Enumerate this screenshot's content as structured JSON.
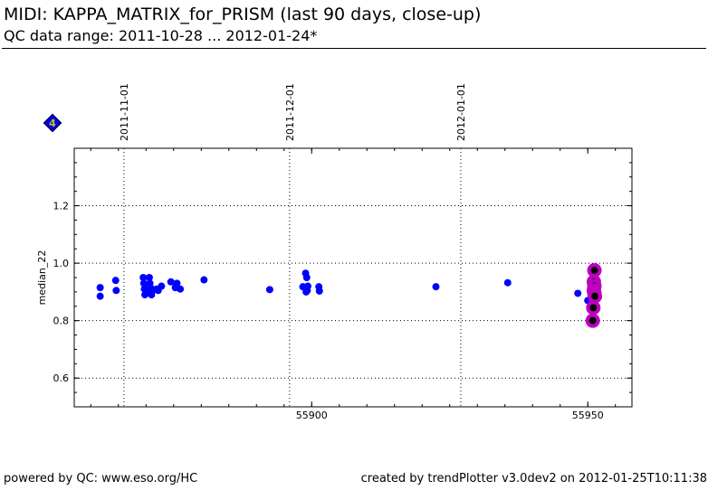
{
  "header": {
    "title": "MIDI: KAPPA_MATRIX_for_PRISM (last 90 days, close-up)",
    "subtitle": "QC data range: 2011-10-28 ... 2012-01-24*"
  },
  "badge": {
    "label": "4",
    "fill": "#0000ff",
    "border": "#000080",
    "text_color": "#c8c800"
  },
  "footer": {
    "left": "powered by QC: www.eso.org/HC",
    "right": "created by trendPlotter v3.0dev2 on 2012-01-25T10:11:38"
  },
  "chart_data": {
    "type": "scatter",
    "title": "",
    "xlabel": "",
    "ylabel": "median_22",
    "xlim": [
      55857,
      55958
    ],
    "ylim": [
      0.5,
      1.4
    ],
    "x_ticks": [
      55900,
      55950
    ],
    "x_tick_labels": [
      "55900",
      "55950"
    ],
    "y_ticks": [
      0.6,
      0.8,
      1.0,
      1.2
    ],
    "y_tick_labels": [
      "0.6",
      "0.8",
      "1.0",
      "1.2"
    ],
    "date_markers": [
      {
        "label": "2011-11-01",
        "x": 55866
      },
      {
        "label": "2011-12-01",
        "x": 55896
      },
      {
        "label": "2012-01-01",
        "x": 55927
      }
    ],
    "grid": "dotted",
    "colors": {
      "points": "#0000ff",
      "highlight_ring": "#c000c0",
      "highlight_core": "#000000"
    },
    "series": [
      {
        "points": [
          [
            55861.7,
            0.915
          ],
          [
            55861.7,
            0.885
          ],
          [
            55864.5,
            0.94
          ],
          [
            55864.6,
            0.905
          ],
          [
            55869.5,
            0.95
          ],
          [
            55869.6,
            0.93
          ],
          [
            55869.7,
            0.91
          ],
          [
            55869.8,
            0.89
          ],
          [
            55870.2,
            0.92
          ],
          [
            55870.4,
            0.9
          ],
          [
            55870.6,
            0.95
          ],
          [
            55870.7,
            0.93
          ],
          [
            55870.8,
            0.915
          ],
          [
            55870.9,
            0.895
          ],
          [
            55871.0,
            0.89
          ],
          [
            55871.2,
            0.905
          ],
          [
            55871.9,
            0.91
          ],
          [
            55872.2,
            0.905
          ],
          [
            55872.8,
            0.92
          ],
          [
            55874.5,
            0.935
          ],
          [
            55875.3,
            0.915
          ],
          [
            55875.6,
            0.93
          ],
          [
            55876.2,
            0.91
          ],
          [
            55880.5,
            0.942
          ],
          [
            55892.4,
            0.908
          ],
          [
            55898.4,
            0.918
          ],
          [
            55898.8,
            0.915
          ],
          [
            55898.9,
            0.965
          ],
          [
            55899.0,
            0.9
          ],
          [
            55899.1,
            0.95
          ],
          [
            55899.2,
            0.905
          ],
          [
            55899.3,
            0.92
          ],
          [
            55901.3,
            0.918
          ],
          [
            55901.4,
            0.903
          ],
          [
            55922.5,
            0.918
          ],
          [
            55935.5,
            0.932
          ],
          [
            55948.2,
            0.895
          ],
          [
            55950.0,
            0.87
          ]
        ]
      },
      {
        "highlight": true,
        "points": [
          [
            55951.2,
            0.975
          ],
          [
            55951.1,
            0.935
          ],
          [
            55951.2,
            0.92
          ],
          [
            55951.1,
            0.905
          ],
          [
            55951.2,
            0.895
          ],
          [
            55951.3,
            0.885
          ],
          [
            55951.0,
            0.845
          ],
          [
            55950.9,
            0.8
          ]
        ]
      }
    ]
  }
}
